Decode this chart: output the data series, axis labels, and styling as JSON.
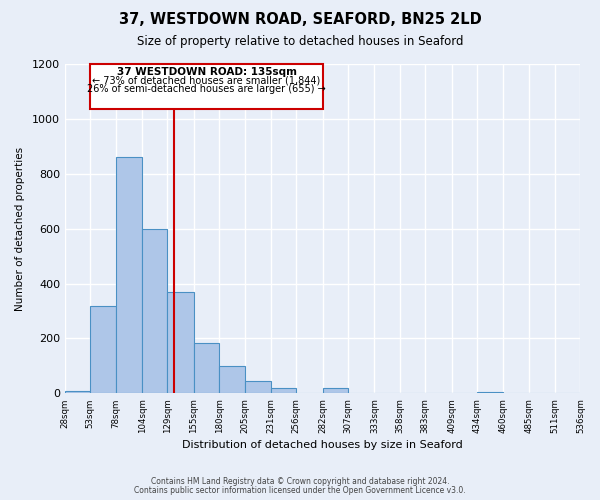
{
  "title": "37, WESTDOWN ROAD, SEAFORD, BN25 2LD",
  "subtitle": "Size of property relative to detached houses in Seaford",
  "xlabel": "Distribution of detached houses by size in Seaford",
  "ylabel": "Number of detached properties",
  "bar_color": "#aec6e8",
  "bar_edge_color": "#4a90c4",
  "bin_edges": [
    28,
    53,
    78,
    104,
    129,
    155,
    180,
    205,
    231,
    256,
    282,
    307,
    333,
    358,
    383,
    409,
    434,
    460,
    485,
    511,
    536
  ],
  "bin_labels": [
    "28sqm",
    "53sqm",
    "78sqm",
    "104sqm",
    "129sqm",
    "155sqm",
    "180sqm",
    "205sqm",
    "231sqm",
    "256sqm",
    "282sqm",
    "307sqm",
    "333sqm",
    "358sqm",
    "383sqm",
    "409sqm",
    "434sqm",
    "460sqm",
    "485sqm",
    "511sqm",
    "536sqm"
  ],
  "counts": [
    10,
    320,
    860,
    600,
    370,
    185,
    100,
    45,
    20,
    0,
    20,
    0,
    0,
    0,
    0,
    0,
    5,
    0,
    0,
    0
  ],
  "property_value": 135,
  "vline_color": "#cc0000",
  "annotation_text_line1": "37 WESTDOWN ROAD: 135sqm",
  "annotation_text_line2": "← 73% of detached houses are smaller (1,844)",
  "annotation_text_line3": "26% of semi-detached houses are larger (655) →",
  "annotation_box_color": "#ffffff",
  "annotation_box_edge": "#cc0000",
  "ylim": [
    0,
    1200
  ],
  "yticks": [
    0,
    200,
    400,
    600,
    800,
    1000,
    1200
  ],
  "background_color": "#e8eef8",
  "grid_color": "#ffffff",
  "footer_line1": "Contains HM Land Registry data © Crown copyright and database right 2024.",
  "footer_line2": "Contains public sector information licensed under the Open Government Licence v3.0."
}
